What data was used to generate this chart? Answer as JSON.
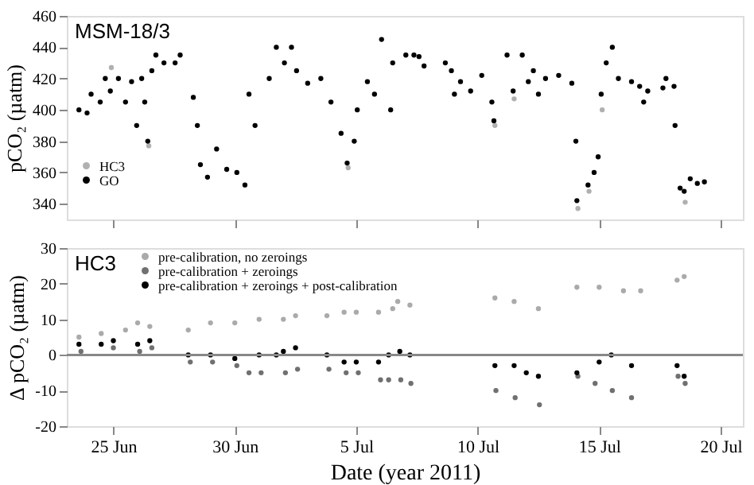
{
  "chart_data": [
    {
      "type": "scatter",
      "annotations": [
        "MSM-18/3"
      ],
      "ylabel": "pCO₂ (µatm)",
      "legend": "bottom left",
      "tick_labels": "y",
      "marker": "circle",
      "grid": false,
      "xlim": [
        "2011-06-23T02:00",
        "2011-07-20T22:00"
      ],
      "xticks": [
        {
          "value": "2011-06-25",
          "label": null
        },
        {
          "value": "2011-06-30",
          "label": null
        },
        {
          "value": "2011-07-05",
          "label": null
        },
        {
          "value": "2011-07-10",
          "label": null
        },
        {
          "value": "2011-07-15",
          "label": null
        },
        {
          "value": "2011-07-20",
          "label": null
        }
      ],
      "ylim": [
        330,
        460
      ],
      "yticks": [
        340,
        360,
        380,
        400,
        420,
        440,
        460
      ],
      "series": [
        {
          "name": "HC3",
          "color": "#b0b0b0",
          "x": [
            "2011-06-24T22:00",
            "2011-06-26T11:00",
            "2011-07-04T16:00",
            "2011-07-10T17:00",
            "2011-07-11T12:00",
            "2011-07-14T03:00",
            "2011-07-14T14:00",
            "2011-07-15T03:00",
            "2011-07-18T13:00"
          ],
          "values": [
            427,
            377,
            363,
            390,
            407,
            337,
            348,
            400,
            341
          ]
        },
        {
          "name": "GO",
          "color": "#000000",
          "x": [
            "2011-06-23T14:00",
            "2011-06-23T22:00",
            "2011-06-24T02:00",
            "2011-06-24T11:00",
            "2011-06-24T16:00",
            "2011-06-24T21:00",
            "2011-06-25T05:00",
            "2011-06-25T12:00",
            "2011-06-25T18:00",
            "2011-06-25T23:00",
            "2011-06-26T04:00",
            "2011-06-26T07:00",
            "2011-06-26T10:00",
            "2011-06-26T14:00",
            "2011-06-26T18:00",
            "2011-06-27T02:00",
            "2011-06-27T13:00",
            "2011-06-27T18:00",
            "2011-06-28T07:00",
            "2011-06-28T11:00",
            "2011-06-28T14:00",
            "2011-06-28T21:00",
            "2011-06-29T06:00",
            "2011-06-29T16:00",
            "2011-06-30T02:00",
            "2011-06-30T10:00",
            "2011-06-30T14:00",
            "2011-06-30T20:00",
            "2011-07-01T10:00",
            "2011-07-01T17:00",
            "2011-07-02T01:00",
            "2011-07-02T08:00",
            "2011-07-02T13:00",
            "2011-07-03T00:00",
            "2011-07-03T13:00",
            "2011-07-03T23:00",
            "2011-07-04T09:00",
            "2011-07-04T15:00",
            "2011-07-04T22:00",
            "2011-07-05T01:00",
            "2011-07-05T11:00",
            "2011-07-05T18:00",
            "2011-07-06T01:00",
            "2011-07-06T10:00",
            "2011-07-06T12:00",
            "2011-07-07T01:00",
            "2011-07-07T09:00",
            "2011-07-07T14:00",
            "2011-07-07T19:00",
            "2011-07-08T16:00",
            "2011-07-08T22:00",
            "2011-07-09T01:00",
            "2011-07-09T07:00",
            "2011-07-09T17:00",
            "2011-07-10T04:00",
            "2011-07-10T14:00",
            "2011-07-10T16:00",
            "2011-07-11T05:00",
            "2011-07-11T11:00",
            "2011-07-11T20:00",
            "2011-07-12T02:00",
            "2011-07-12T07:00",
            "2011-07-12T12:00",
            "2011-07-12T19:00",
            "2011-07-13T08:00",
            "2011-07-13T21:00",
            "2011-07-14T01:00",
            "2011-07-14T02:00",
            "2011-07-14T13:00",
            "2011-07-14T19:00",
            "2011-07-14T23:00",
            "2011-07-15T02:00",
            "2011-07-15T07:00",
            "2011-07-15T13:00",
            "2011-07-15T19:00",
            "2011-07-16T08:00",
            "2011-07-16T16:00",
            "2011-07-16T20:00",
            "2011-07-17T00:00",
            "2011-07-17T15:00",
            "2011-07-17T18:00",
            "2011-07-18T02:00",
            "2011-07-18T03:00",
            "2011-07-18T08:00",
            "2011-07-18T12:00",
            "2011-07-18T18:00",
            "2011-07-19T01:00",
            "2011-07-19T08:00"
          ],
          "values": [
            400,
            398,
            410,
            405,
            420,
            412,
            420,
            405,
            418,
            390,
            420,
            405,
            380,
            425,
            435,
            430,
            430,
            435,
            408,
            390,
            365,
            357,
            375,
            362,
            360,
            352,
            410,
            390,
            420,
            440,
            430,
            440,
            425,
            417,
            420,
            405,
            385,
            366,
            380,
            400,
            418,
            410,
            445,
            400,
            430,
            435,
            435,
            434,
            428,
            430,
            425,
            410,
            418,
            412,
            422,
            405,
            393,
            435,
            412,
            435,
            418,
            425,
            410,
            420,
            422,
            417,
            380,
            342,
            352,
            360,
            370,
            410,
            430,
            440,
            420,
            418,
            415,
            405,
            412,
            414,
            420,
            415,
            390,
            350,
            348,
            356,
            353,
            354
          ]
        }
      ]
    },
    {
      "type": "scatter",
      "annotations": [
        "HC3"
      ],
      "xlabel": "Date (year 2011)",
      "ylabel": "Δ pCO₂ (µatm)",
      "legend": "top left",
      "marker": "circle",
      "grid": false,
      "xlim": [
        "2011-06-23T02:00",
        "2011-07-20T22:00"
      ],
      "xticks": [
        {
          "value": "2011-06-25",
          "label": "25 Jun"
        },
        {
          "value": "2011-06-30",
          "label": "30 Jun"
        },
        {
          "value": "2011-07-05",
          "label": "5 Jul"
        },
        {
          "value": "2011-07-10",
          "label": "10 Jul"
        },
        {
          "value": "2011-07-15",
          "label": "15 Jul"
        },
        {
          "value": "2011-07-20",
          "label": "20 Jul"
        }
      ],
      "ylim": [
        -20,
        30
      ],
      "yticks": [
        -20,
        -10,
        0,
        10,
        20,
        30
      ],
      "ref_lines": [
        {
          "axis": "y",
          "value": 0,
          "label": null,
          "color": "#888888"
        }
      ],
      "series": [
        {
          "name": "pre-calibration, no zeroings",
          "color": "#aaaaaa",
          "x": [
            "2011-06-23T14:00",
            "2011-06-24T12:00",
            "2011-06-25T12:00",
            "2011-06-26T00:00",
            "2011-06-26T12:00",
            "2011-06-28T02:00",
            "2011-06-29T00:00",
            "2011-06-30T00:00",
            "2011-07-01T00:00",
            "2011-07-02T00:00",
            "2011-07-02T12:00",
            "2011-07-03T19:00",
            "2011-07-04T12:00",
            "2011-07-05T00:00",
            "2011-07-05T22:00",
            "2011-07-06T12:00",
            "2011-07-06T17:00",
            "2011-07-07T05:00",
            "2011-07-10T17:00",
            "2011-07-11T12:00",
            "2011-07-12T12:00",
            "2011-07-14T02:00",
            "2011-07-15T00:00",
            "2011-07-16T00:00",
            "2011-07-16T17:00",
            "2011-07-18T05:00",
            "2011-07-18T12:00"
          ],
          "values": [
            5,
            6,
            7,
            9,
            8,
            7,
            9,
            9,
            10,
            10,
            11,
            11,
            12,
            12,
            12,
            13,
            15,
            14,
            16,
            15,
            13,
            19,
            19,
            18,
            18,
            21,
            22
          ]
        },
        {
          "name": "pre-calibration + zeroings",
          "color": "#707070",
          "x": [
            "2011-06-23T16:00",
            "2011-06-25T00:00",
            "2011-06-26T02:00",
            "2011-06-26T14:00",
            "2011-06-28T04:00",
            "2011-06-29T02:00",
            "2011-06-30T02:00",
            "2011-06-30T14:00",
            "2011-07-01T02:00",
            "2011-07-02T02:00",
            "2011-07-02T14:00",
            "2011-07-03T21:00",
            "2011-07-04T14:00",
            "2011-07-05T02:00",
            "2011-07-06T00:00",
            "2011-07-06T08:00",
            "2011-07-06T20:00",
            "2011-07-07T06:00",
            "2011-07-10T18:00",
            "2011-07-11T13:00",
            "2011-07-12T13:00",
            "2011-07-14T03:00",
            "2011-07-14T20:00",
            "2011-07-15T13:00",
            "2011-07-16T08:00",
            "2011-07-18T06:00",
            "2011-07-18T13:00"
          ],
          "values": [
            1,
            2,
            1,
            2,
            -2,
            -2,
            -3,
            -5,
            -5,
            -5,
            -4,
            -4,
            -5,
            -5,
            -7,
            -7,
            -7,
            -8,
            -10,
            -12,
            -14,
            -6,
            -8,
            -10,
            -12,
            -6,
            -8
          ]
        },
        {
          "name": "pre-calibration + zeroings + post-calibration",
          "color": "#000000",
          "x": [
            "2011-06-23T14:00",
            "2011-06-24T12:00",
            "2011-06-25T00:00",
            "2011-06-26T00:00",
            "2011-06-26T12:00",
            "2011-06-28T02:00",
            "2011-06-29T00:00",
            "2011-06-30T00:00",
            "2011-07-01T00:00",
            "2011-07-01T17:00",
            "2011-07-02T00:00",
            "2011-07-02T12:00",
            "2011-07-03T19:00",
            "2011-07-04T12:00",
            "2011-07-05T00:00",
            "2011-07-05T22:00",
            "2011-07-06T08:00",
            "2011-07-06T19:00",
            "2011-07-07T05:00",
            "2011-07-10T17:00",
            "2011-07-11T12:00",
            "2011-07-12T00:00",
            "2011-07-12T12:00",
            "2011-07-14T02:00",
            "2011-07-15T00:00",
            "2011-07-15T12:00",
            "2011-07-16T08:00",
            "2011-07-18T05:00",
            "2011-07-18T12:00"
          ],
          "values": [
            3,
            3,
            4,
            3,
            4,
            0,
            0,
            -1,
            0,
            0,
            1,
            2,
            0,
            -2,
            -2,
            -2,
            0,
            1,
            0,
            -3,
            -3,
            -5,
            -6,
            -5,
            -2,
            0,
            -3,
            -3,
            -6
          ]
        }
      ]
    }
  ]
}
